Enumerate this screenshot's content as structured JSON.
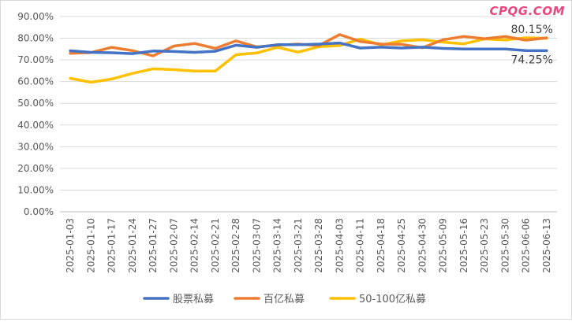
{
  "watermark": "CPQG.COM",
  "chart_data": {
    "type": "line",
    "categories": [
      "2025-01-03",
      "2025-01-10",
      "2025-01-17",
      "2025-01-24",
      "2025-01-27",
      "2025-02-07",
      "2025-02-14",
      "2025-02-21",
      "2025-02-28",
      "2025-03-07",
      "2025-03-14",
      "2025-03-21",
      "2025-03-28",
      "2025-04-03",
      "2025-04-11",
      "2025-04-18",
      "2025-04-25",
      "2025-04-30",
      "2025-05-09",
      "2025-05-16",
      "2025-05-23",
      "2025-05-30",
      "2025-06-06",
      "2025-06-13"
    ],
    "ylim": [
      0,
      90
    ],
    "yticks": [
      "0.00%",
      "10.00%",
      "20.00%",
      "30.00%",
      "40.00%",
      "50.00%",
      "60.00%",
      "70.00%",
      "80.00%",
      "90.00%"
    ],
    "grid": true,
    "legend": "bottom",
    "series": [
      {
        "name": "股票私募",
        "color": "#4472C4",
        "values": [
          74.2,
          73.5,
          73.3,
          72.9,
          74.1,
          73.9,
          73.5,
          74.0,
          76.8,
          75.8,
          77.0,
          77.0,
          77.3,
          77.8,
          75.5,
          75.9,
          75.5,
          75.9,
          75.3,
          75.0,
          75.0,
          75.0,
          74.3,
          74.25
        ]
      },
      {
        "name": "百亿私募",
        "color": "#ED7D31",
        "values": [
          73.0,
          73.4,
          75.8,
          74.3,
          71.9,
          76.4,
          77.6,
          75.3,
          78.8,
          76.0,
          76.8,
          77.3,
          76.6,
          81.7,
          78.5,
          77.3,
          77.2,
          75.6,
          79.3,
          80.8,
          79.8,
          80.8,
          79.1,
          80.15
        ]
      },
      {
        "name": "50-100亿私募",
        "color": "#FFC000",
        "values": [
          61.5,
          59.7,
          61.2,
          63.8,
          65.9,
          65.5,
          64.9,
          64.9,
          72.4,
          73.2,
          75.8,
          73.6,
          76.1,
          76.6,
          79.6,
          76.9,
          78.8,
          79.3,
          78.2,
          77.4,
          79.7,
          79.2,
          80.2,
          80.0
        ]
      }
    ],
    "end_labels": [
      "80.15%",
      "74.25%"
    ]
  }
}
